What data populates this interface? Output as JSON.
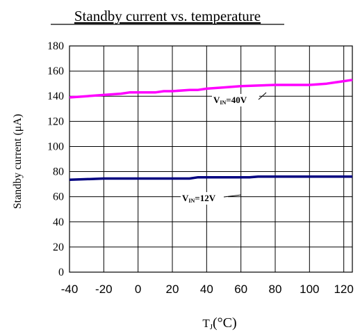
{
  "chart_data": {
    "type": "line",
    "title": "Standby current vs. temperature",
    "xlabel_main": "T",
    "xlabel_sub": "J",
    "xlabel_unit": "(°C)",
    "ylabel": "Standby current (μA)",
    "xlim": [
      -40,
      125
    ],
    "ylim": [
      0,
      180
    ],
    "x_ticks": [
      -40,
      -20,
      0,
      20,
      40,
      60,
      80,
      100,
      120
    ],
    "y_ticks": [
      0,
      20,
      40,
      60,
      80,
      100,
      120,
      140,
      160,
      180
    ],
    "grid": true,
    "series": [
      {
        "main": "V",
        "sub": "IN",
        "value_text": "=40V",
        "color": "#ff00ff",
        "x": [
          -40,
          -30,
          -20,
          -10,
          -5,
          0,
          10,
          15,
          20,
          30,
          35,
          40,
          50,
          60,
          70,
          80,
          90,
          100,
          105,
          110,
          115,
          120,
          125
        ],
        "y": [
          139,
          140,
          141,
          142,
          143,
          143,
          143,
          144,
          144,
          145,
          145,
          146,
          147,
          148,
          148.5,
          149,
          149,
          149,
          149.5,
          150,
          151,
          152,
          153
        ]
      },
      {
        "main": "V",
        "sub": "IN",
        "value_text": "=12V",
        "color": "#000080",
        "x": [
          -40,
          -30,
          -20,
          -10,
          0,
          10,
          20,
          30,
          35,
          40,
          50,
          60,
          65,
          70,
          75,
          80,
          90,
          100,
          110,
          120,
          125
        ],
        "y": [
          73.5,
          74,
          74.5,
          74.5,
          74.5,
          74.5,
          74.5,
          74.5,
          75.5,
          75.5,
          75.5,
          75.5,
          75.5,
          76,
          76,
          76,
          76,
          76,
          76,
          76,
          76
        ]
      }
    ]
  }
}
